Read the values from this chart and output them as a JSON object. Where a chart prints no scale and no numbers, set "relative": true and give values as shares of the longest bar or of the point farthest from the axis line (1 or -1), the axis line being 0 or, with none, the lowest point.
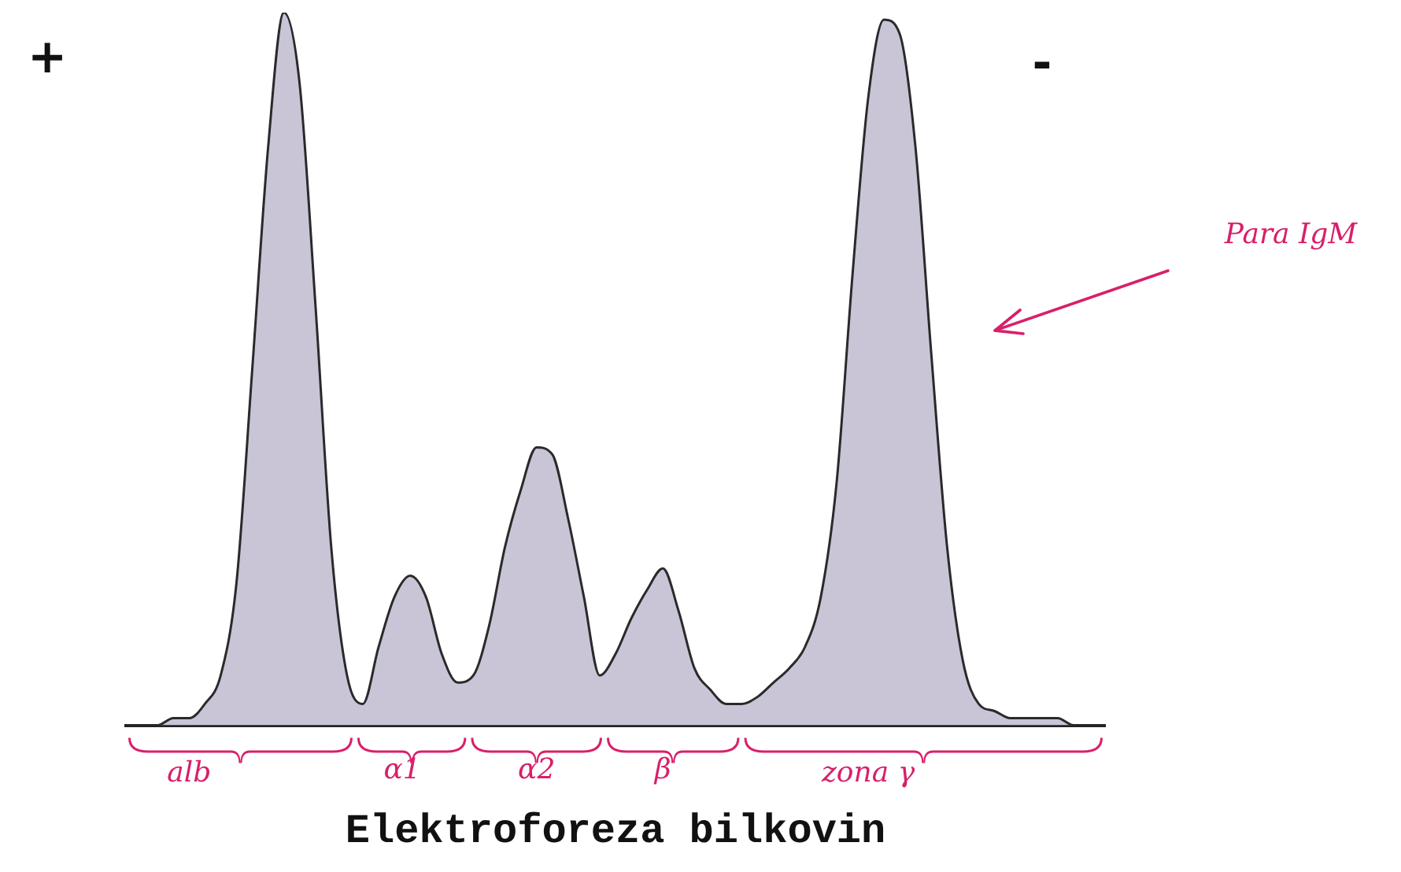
{
  "chart_data": {
    "type": "area",
    "title": "Elektroforeza bilkovin",
    "relative": true,
    "legend": false,
    "grid": false,
    "marker": "none",
    "categories": [
      null,
      null,
      null,
      null,
      null,
      null,
      null,
      null,
      null,
      null,
      null,
      null,
      null,
      null,
      null,
      null,
      null,
      null,
      null,
      null,
      null,
      null,
      null,
      null,
      null,
      null,
      null,
      null,
      null,
      null,
      null,
      null,
      null,
      null,
      null,
      null,
      null,
      null,
      null,
      null,
      null,
      null,
      null,
      null,
      null,
      null,
      null,
      null,
      null,
      null,
      null,
      null,
      null,
      null,
      null,
      null,
      null,
      null,
      null,
      null,
      null,
      null,
      null
    ],
    "series": [
      {
        "color": "#c9c5d6",
        "values": [
          0,
          0,
          0,
          0.01,
          0.01,
          0.03,
          0.07,
          0.2,
          0.5,
          0.81,
          1,
          0.9,
          0.59,
          0.25,
          0.07,
          0.03,
          0.11,
          0.18,
          0.21,
          0.18,
          0.1,
          0.06,
          0.07,
          0.14,
          0.25,
          0.33,
          0.39,
          0.38,
          0.29,
          0.18,
          0.07,
          0.1,
          0.15,
          0.19,
          0.22,
          0.16,
          0.08,
          0.05,
          0.03,
          0.03,
          0.04,
          0.06,
          0.08,
          0.11,
          0.18,
          0.34,
          0.63,
          0.88,
          0.99,
          0.97,
          0.81,
          0.52,
          0.25,
          0.09,
          0.03,
          0.02,
          0.01,
          0.01,
          0.01,
          0.01,
          0,
          0,
          0
        ]
      }
    ],
    "annotations": [
      "+",
      "-",
      "alb",
      "α1",
      "α2",
      "β",
      "zona γ",
      "Para IgM"
    ]
  }
}
